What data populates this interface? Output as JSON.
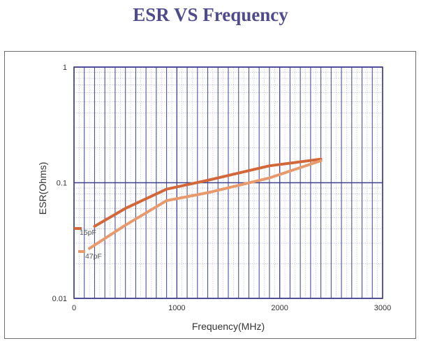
{
  "chart_data": {
    "type": "line",
    "title": "ESR VS Frequency",
    "xlabel": "Frequency(MHz)",
    "ylabel": "ESR(Ohms)",
    "xlim": [
      0,
      3000
    ],
    "ylim": [
      0.01,
      1
    ],
    "yscale": "log",
    "x_ticks": [
      "0",
      "1000",
      "2000",
      "3000"
    ],
    "y_ticks": [
      "0.01",
      "0.1",
      "1"
    ],
    "grid": true,
    "legend": "left",
    "series": [
      {
        "name": "15pF",
        "color": "#d2683a",
        "x": [
          200,
          500,
          900,
          1300,
          1900,
          2400
        ],
        "y": [
          0.042,
          0.06,
          0.088,
          0.105,
          0.14,
          0.16
        ]
      },
      {
        "name": "47pF",
        "color": "#e99a6c",
        "x": [
          150,
          500,
          900,
          1300,
          1900,
          2400
        ],
        "y": [
          0.027,
          0.043,
          0.07,
          0.082,
          0.11,
          0.155
        ]
      }
    ]
  }
}
